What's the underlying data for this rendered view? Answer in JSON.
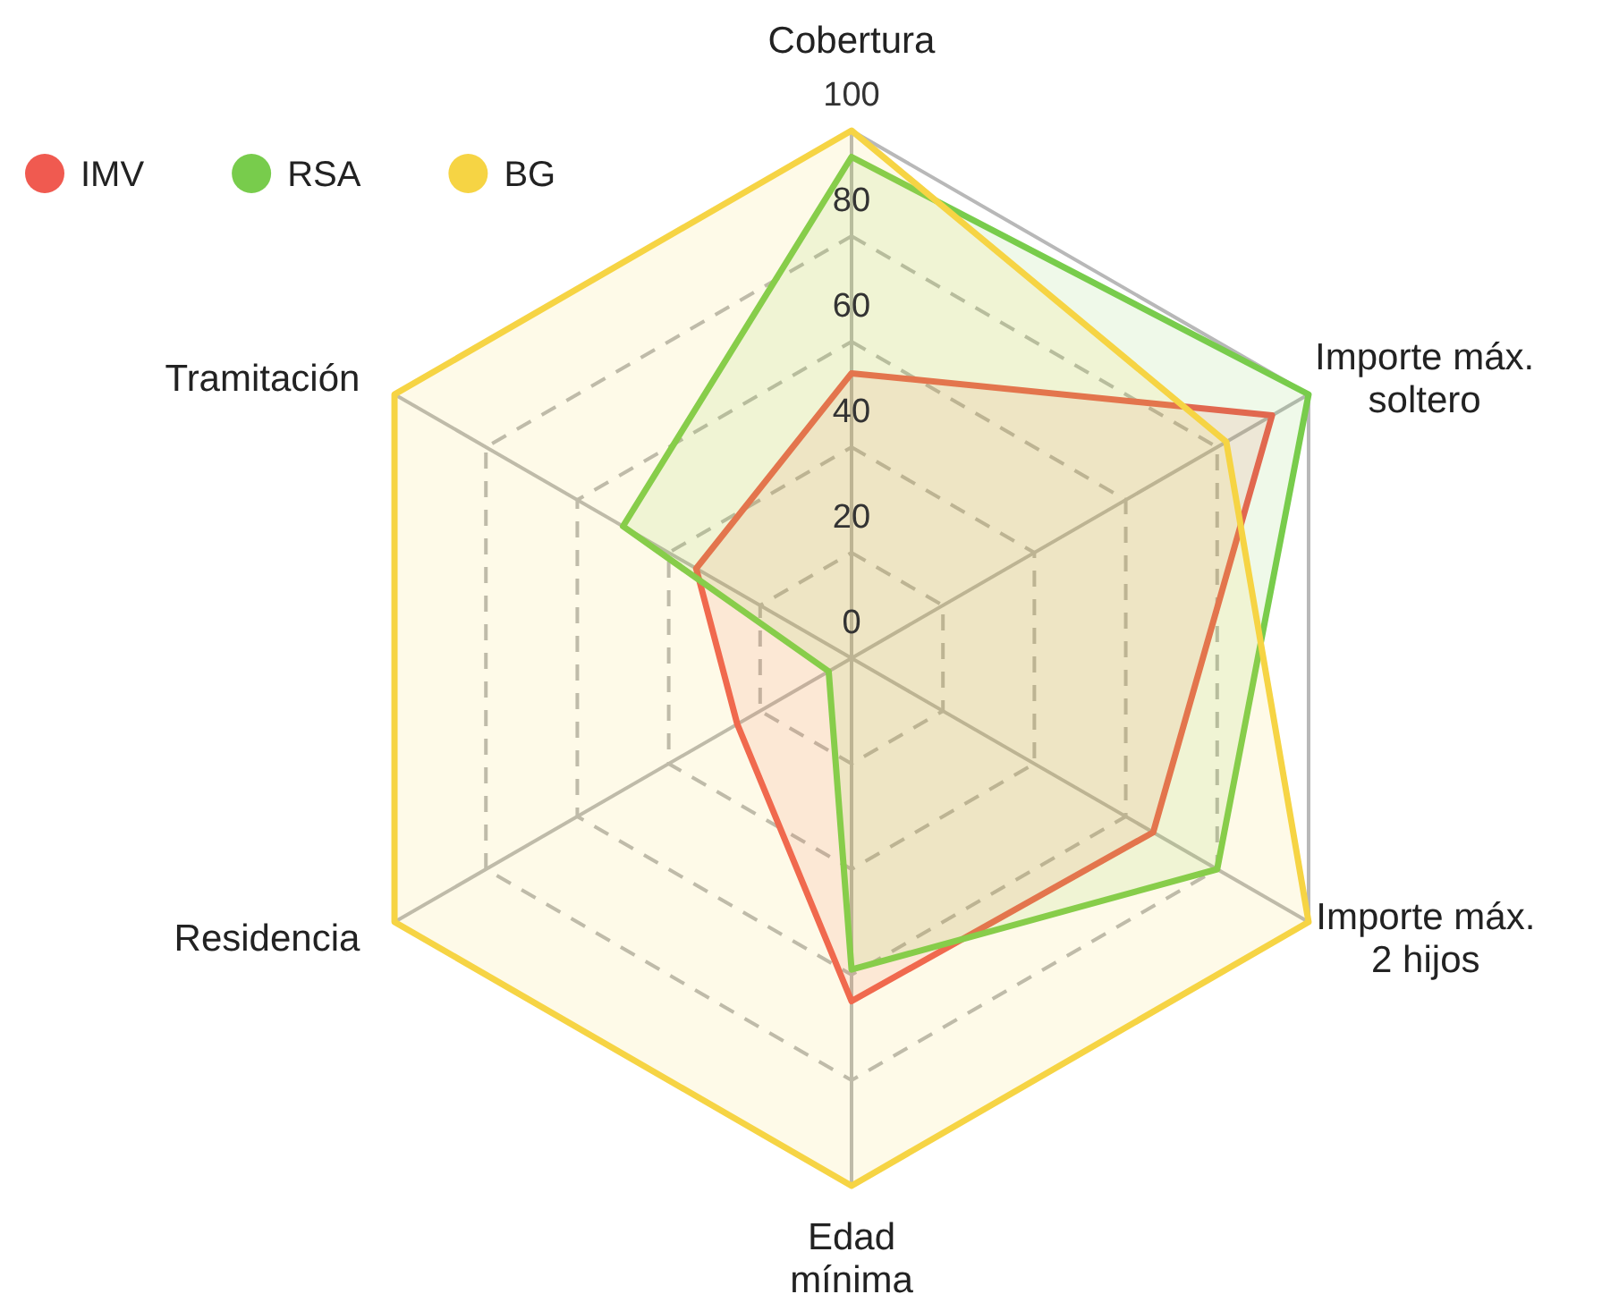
{
  "chart_data": {
    "type": "radar",
    "categories": [
      "Cobertura",
      "Importe máx.\nsoltero",
      "Importe máx.\n2 hijos",
      "Edad\nmínima",
      "Residencia",
      "Tramitación"
    ],
    "ylim": [
      0,
      100
    ],
    "yticks": [
      0,
      20,
      40,
      60,
      80,
      100
    ],
    "legend": "top left",
    "grid": true,
    "series": [
      {
        "name": "IMV",
        "color": "#f05a50",
        "values": [
          54,
          92,
          66,
          65,
          25,
          34
        ]
      },
      {
        "name": "RSA",
        "color": "#78cc4c",
        "values": [
          95,
          100,
          80,
          59,
          5,
          50
        ]
      },
      {
        "name": "BG",
        "color": "#f6d444",
        "values": [
          100,
          82,
          100,
          100,
          100,
          100
        ]
      }
    ]
  }
}
